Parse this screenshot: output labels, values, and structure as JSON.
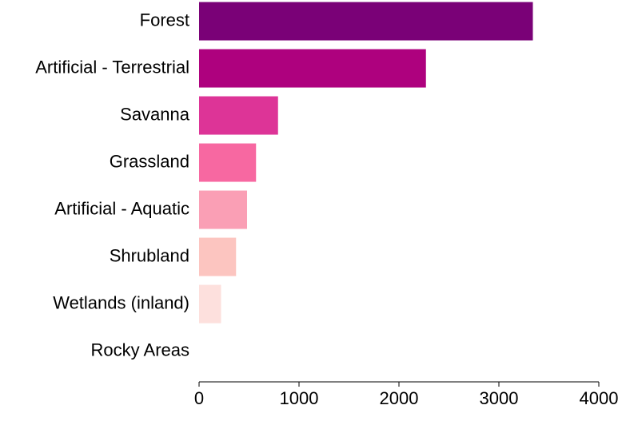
{
  "chart_data": {
    "type": "bar",
    "orientation": "horizontal",
    "categories": [
      "Forest",
      "Artificial - Terrestrial",
      "Savanna",
      "Grassland",
      "Artificial - Aquatic",
      "Shrubland",
      "Wetlands (inland)",
      "Rocky Areas"
    ],
    "values": [
      3340,
      2270,
      790,
      570,
      480,
      370,
      220,
      0
    ],
    "colors": [
      "#7a0177",
      "#ae017e",
      "#dd3497",
      "#f768a1",
      "#fa9fb5",
      "#fcc5c0",
      "#fde0dd",
      "#fff7f3"
    ],
    "xlim": [
      0,
      4000
    ],
    "xticks": [
      0,
      1000,
      2000,
      3000,
      4000
    ]
  }
}
